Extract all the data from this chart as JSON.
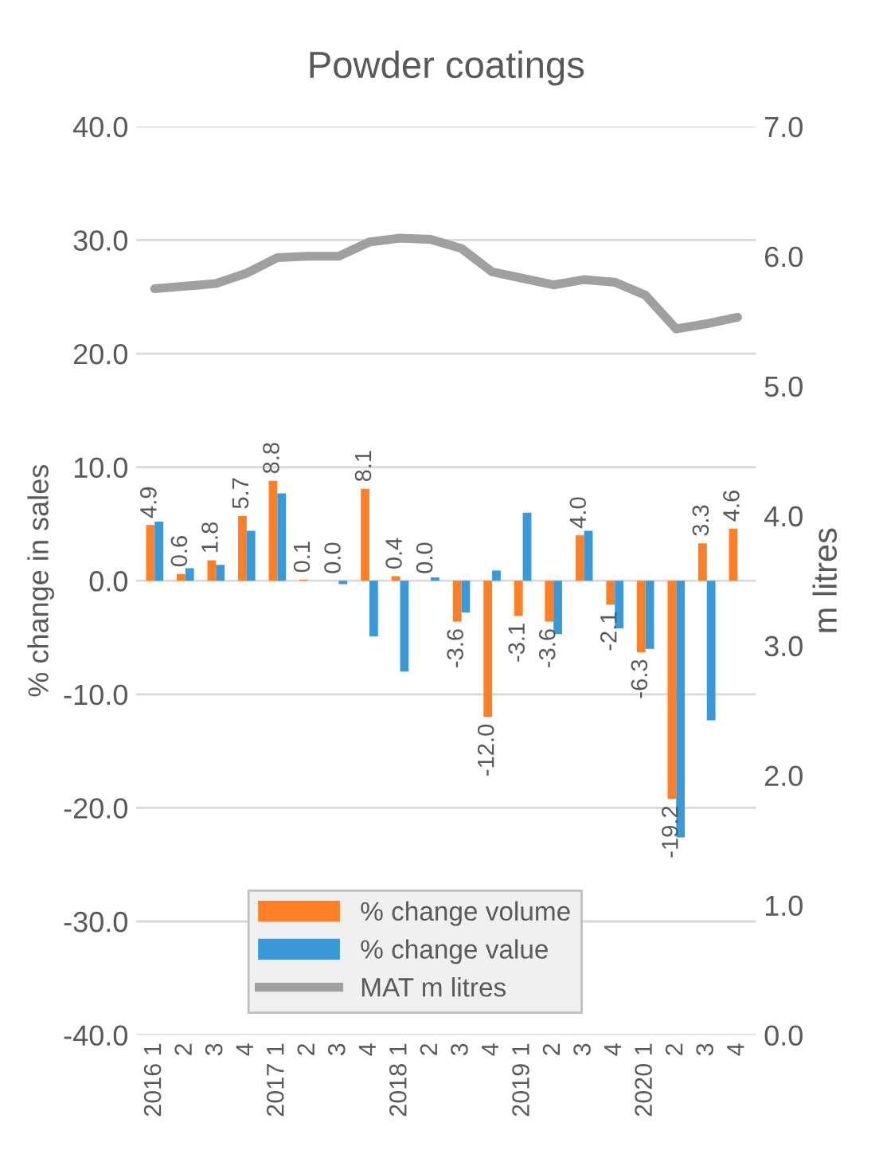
{
  "chart_data": {
    "type": "bar",
    "title": "Powder coatings",
    "ylabel": "% change in sales",
    "y2label": "m litres",
    "categories": [
      "2016 1",
      "2",
      "3",
      "4",
      "2017 1",
      "2",
      "3",
      "4",
      "2018 1",
      "2",
      "3",
      "4",
      "2019 1",
      "2",
      "3",
      "4",
      "2020 1",
      "2",
      "3",
      "4"
    ],
    "series": [
      {
        "name": "% change volume",
        "color": "#ff7f27",
        "values": [
          4.9,
          0.6,
          1.8,
          5.7,
          8.8,
          0.1,
          0.0,
          8.1,
          0.4,
          0.0,
          -3.6,
          -12.0,
          -3.1,
          -3.6,
          4.0,
          -2.1,
          -6.3,
          -19.2,
          3.3,
          4.6
        ],
        "value_labels": [
          "4.9",
          "0.6",
          "1.8",
          "5.7",
          "8.8",
          "0.1",
          "0.0",
          "8.1",
          "0.4",
          "0.0",
          "-3.6",
          "-12.0",
          "-3.1",
          "-3.6",
          "4.0",
          "-2.1",
          "-6.3",
          "-19.2",
          "3.3",
          "4.6"
        ]
      },
      {
        "name": "% change value",
        "color": "#3a9ad9",
        "values": [
          5.2,
          1.1,
          1.4,
          4.4,
          7.7,
          null,
          -0.3,
          -4.9,
          -8.0,
          0.3,
          -2.8,
          0.9,
          6.0,
          -4.7,
          4.4,
          -4.2,
          -6.0,
          -22.6,
          -12.3,
          null
        ]
      },
      {
        "name": "MAT m litres",
        "type": "line",
        "axis": "y2",
        "color": "#a0a0a0",
        "values": [
          5.75,
          5.77,
          5.79,
          5.87,
          5.99,
          6.0,
          6.0,
          6.11,
          6.14,
          6.13,
          6.06,
          5.88,
          5.83,
          5.78,
          5.82,
          5.8,
          5.7,
          5.44,
          5.48,
          5.53
        ]
      }
    ],
    "ylim": [
      -40,
      40
    ],
    "yticks": [
      {
        "value": -40,
        "label": "-40.0"
      },
      {
        "value": -30,
        "label": "-30.0"
      },
      {
        "value": -20,
        "label": "-20.0"
      },
      {
        "value": -10,
        "label": "-10.0"
      },
      {
        "value": 0,
        "label": "0.0"
      },
      {
        "value": 10,
        "label": "10.0"
      },
      {
        "value": 20,
        "label": "20.0"
      },
      {
        "value": 30,
        "label": "30.0"
      },
      {
        "value": 40,
        "label": "40.0"
      }
    ],
    "y2lim": [
      0,
      7
    ],
    "y2ticks": [
      {
        "value": 0,
        "label": "0.0"
      },
      {
        "value": 1,
        "label": "1.0"
      },
      {
        "value": 2,
        "label": "2.0"
      },
      {
        "value": 3,
        "label": "3.0"
      },
      {
        "value": 4,
        "label": "4.0"
      },
      {
        "value": 5,
        "label": "5.0"
      },
      {
        "value": 6,
        "label": "6.0"
      },
      {
        "value": 7,
        "label": "7.0"
      }
    ],
    "grid": "y",
    "legend": "bottom"
  }
}
